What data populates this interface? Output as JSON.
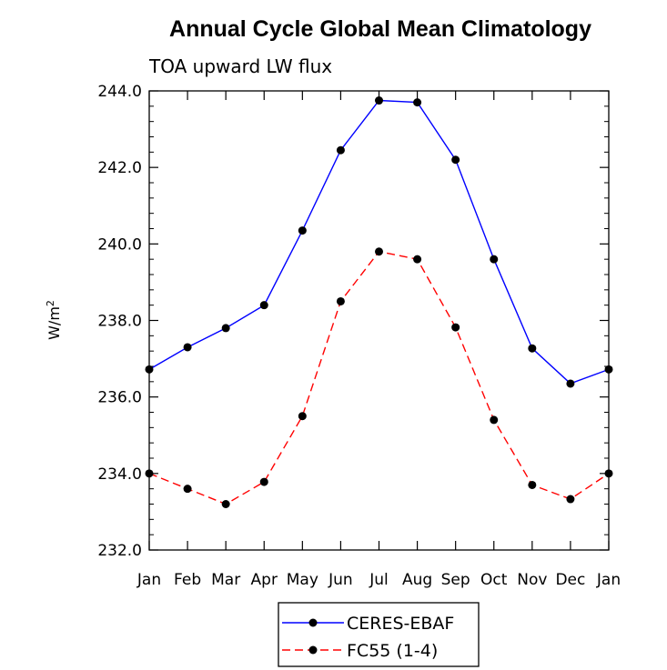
{
  "chart_data": {
    "type": "line",
    "title": "Annual Cycle Global Mean Climatology",
    "subtitle": "TOA upward LW flux",
    "ylabel_base": "W/m",
    "ylabel_sup": "2",
    "xlabel": "",
    "categories": [
      "Jan",
      "Feb",
      "Mar",
      "Apr",
      "May",
      "Jun",
      "Jul",
      "Aug",
      "Sep",
      "Oct",
      "Nov",
      "Dec",
      "Jan"
    ],
    "ylim": [
      232.0,
      244.0
    ],
    "yticks": [
      "232.0",
      "234.0",
      "236.0",
      "238.0",
      "240.0",
      "242.0",
      "244.0"
    ],
    "series": [
      {
        "name": "CERES-EBAF",
        "color": "#0000ff",
        "dash": "solid",
        "values": [
          236.72,
          237.3,
          237.8,
          238.4,
          240.35,
          242.45,
          243.75,
          243.7,
          242.2,
          239.6,
          237.27,
          236.35,
          236.72
        ]
      },
      {
        "name": "FC55 (1-4)",
        "color": "#ff0000",
        "dash": "dashed",
        "values": [
          234.0,
          233.6,
          233.2,
          233.78,
          235.5,
          238.5,
          239.8,
          239.6,
          237.82,
          235.4,
          233.7,
          233.33,
          234.0
        ]
      }
    ],
    "legend_position": "bottom-center"
  }
}
